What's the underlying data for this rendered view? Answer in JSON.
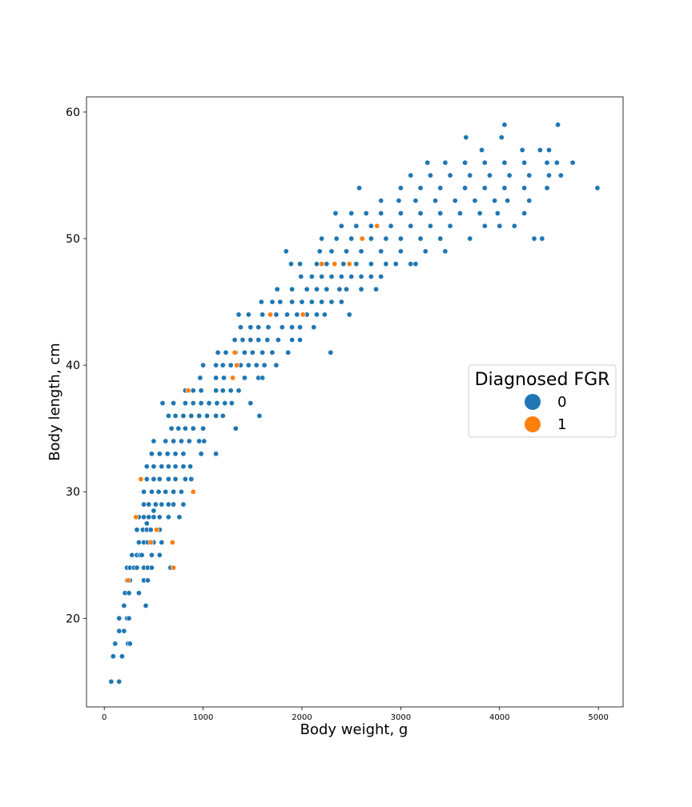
{
  "chart_data": {
    "type": "scatter",
    "xlabel": "Body weight, g",
    "ylabel": "Body length, cm",
    "xlim": [
      -180,
      5250
    ],
    "ylim": [
      13,
      61.2
    ],
    "xticks": [
      0,
      1000,
      2000,
      3000,
      4000,
      5000
    ],
    "yticks": [
      20,
      30,
      40,
      50,
      60
    ],
    "grid": false,
    "legend": {
      "title": "Diagnosed FGR",
      "placement": "right",
      "entries": [
        {
          "label": "0",
          "color": "#1f77b4"
        },
        {
          "label": "1",
          "color": "#ff7f0e"
        }
      ]
    },
    "series": [
      {
        "key": "0",
        "color": "#1f77b4",
        "points": [
          [
            70,
            15
          ],
          [
            150,
            15
          ],
          [
            90,
            17
          ],
          [
            180,
            17
          ],
          [
            110,
            18
          ],
          [
            240,
            18
          ],
          [
            260,
            18
          ],
          [
            150,
            19
          ],
          [
            200,
            19
          ],
          [
            150,
            20
          ],
          [
            230,
            20
          ],
          [
            250,
            20
          ],
          [
            200,
            21
          ],
          [
            420,
            21
          ],
          [
            210,
            22
          ],
          [
            250,
            22
          ],
          [
            350,
            22
          ],
          [
            230,
            23
          ],
          [
            260,
            23
          ],
          [
            400,
            23
          ],
          [
            440,
            23
          ],
          [
            230,
            24
          ],
          [
            260,
            24
          ],
          [
            300,
            24
          ],
          [
            330,
            24
          ],
          [
            400,
            24
          ],
          [
            440,
            24
          ],
          [
            480,
            24
          ],
          [
            670,
            24
          ],
          [
            280,
            25
          ],
          [
            330,
            25
          ],
          [
            360,
            25
          ],
          [
            380,
            25
          ],
          [
            480,
            25
          ],
          [
            560,
            25
          ],
          [
            350,
            26
          ],
          [
            400,
            26
          ],
          [
            440,
            26
          ],
          [
            500,
            26
          ],
          [
            580,
            26
          ],
          [
            330,
            27
          ],
          [
            390,
            27
          ],
          [
            430,
            27
          ],
          [
            470,
            27
          ],
          [
            560,
            27
          ],
          [
            430,
            27.5
          ],
          [
            350,
            28
          ],
          [
            400,
            28
          ],
          [
            450,
            28
          ],
          [
            500,
            28
          ],
          [
            560,
            28
          ],
          [
            650,
            28
          ],
          [
            760,
            28
          ],
          [
            500,
            28.5
          ],
          [
            400,
            29
          ],
          [
            450,
            29
          ],
          [
            520,
            29
          ],
          [
            580,
            29
          ],
          [
            650,
            29
          ],
          [
            700,
            29
          ],
          [
            800,
            29
          ],
          [
            400,
            30
          ],
          [
            480,
            30
          ],
          [
            550,
            30
          ],
          [
            620,
            30
          ],
          [
            700,
            30
          ],
          [
            780,
            30
          ],
          [
            430,
            31
          ],
          [
            500,
            31
          ],
          [
            560,
            31
          ],
          [
            650,
            31
          ],
          [
            720,
            31
          ],
          [
            820,
            31
          ],
          [
            880,
            31
          ],
          [
            430,
            32
          ],
          [
            500,
            32
          ],
          [
            580,
            32
          ],
          [
            650,
            32
          ],
          [
            720,
            32
          ],
          [
            800,
            32
          ],
          [
            870,
            32
          ],
          [
            480,
            33
          ],
          [
            560,
            33
          ],
          [
            640,
            33
          ],
          [
            720,
            33
          ],
          [
            800,
            33
          ],
          [
            980,
            33
          ],
          [
            1130,
            33
          ],
          [
            500,
            34
          ],
          [
            620,
            34
          ],
          [
            700,
            34
          ],
          [
            780,
            34
          ],
          [
            860,
            34
          ],
          [
            960,
            34
          ],
          [
            1010,
            34
          ],
          [
            680,
            35
          ],
          [
            750,
            35
          ],
          [
            820,
            35
          ],
          [
            900,
            35
          ],
          [
            1000,
            35
          ],
          [
            1330,
            35
          ],
          [
            650,
            36
          ],
          [
            720,
            36
          ],
          [
            800,
            36
          ],
          [
            880,
            36
          ],
          [
            960,
            36
          ],
          [
            1040,
            36
          ],
          [
            1130,
            36
          ],
          [
            1200,
            36
          ],
          [
            1570,
            36
          ],
          [
            590,
            37
          ],
          [
            700,
            37
          ],
          [
            820,
            37
          ],
          [
            900,
            37
          ],
          [
            980,
            37
          ],
          [
            1060,
            37
          ],
          [
            1140,
            37
          ],
          [
            1220,
            37
          ],
          [
            1290,
            37
          ],
          [
            1480,
            37
          ],
          [
            820,
            38
          ],
          [
            900,
            38
          ],
          [
            980,
            38
          ],
          [
            1130,
            38
          ],
          [
            1200,
            38
          ],
          [
            1280,
            38
          ],
          [
            1360,
            38
          ],
          [
            970,
            39
          ],
          [
            1130,
            39
          ],
          [
            1210,
            39
          ],
          [
            1300,
            39
          ],
          [
            1420,
            39
          ],
          [
            1560,
            39
          ],
          [
            1600,
            39
          ],
          [
            1000,
            40
          ],
          [
            1130,
            40
          ],
          [
            1200,
            40
          ],
          [
            1280,
            40
          ],
          [
            1380,
            40
          ],
          [
            1460,
            40
          ],
          [
            1540,
            40
          ],
          [
            1620,
            40
          ],
          [
            1740,
            40
          ],
          [
            1150,
            41
          ],
          [
            1230,
            41
          ],
          [
            1330,
            41
          ],
          [
            1420,
            41
          ],
          [
            1500,
            41
          ],
          [
            1600,
            41
          ],
          [
            1700,
            41
          ],
          [
            1860,
            41
          ],
          [
            2290,
            41
          ],
          [
            1320,
            42
          ],
          [
            1400,
            42
          ],
          [
            1480,
            42
          ],
          [
            1560,
            42
          ],
          [
            1650,
            42
          ],
          [
            1760,
            42
          ],
          [
            1900,
            42
          ],
          [
            1980,
            42
          ],
          [
            1380,
            43
          ],
          [
            1480,
            43
          ],
          [
            1560,
            43
          ],
          [
            1660,
            43
          ],
          [
            1800,
            43
          ],
          [
            1900,
            43
          ],
          [
            1980,
            43
          ],
          [
            2120,
            43
          ],
          [
            1360,
            44
          ],
          [
            1460,
            44
          ],
          [
            1600,
            44
          ],
          [
            1740,
            44
          ],
          [
            1850,
            44
          ],
          [
            1950,
            44
          ],
          [
            2050,
            44
          ],
          [
            2150,
            44
          ],
          [
            2230,
            44
          ],
          [
            2480,
            44
          ],
          [
            1590,
            45
          ],
          [
            1700,
            45
          ],
          [
            1780,
            45
          ],
          [
            1900,
            45
          ],
          [
            2000,
            45
          ],
          [
            2100,
            45
          ],
          [
            2200,
            45
          ],
          [
            2300,
            45
          ],
          [
            2400,
            45
          ],
          [
            1750,
            46
          ],
          [
            1900,
            46
          ],
          [
            2050,
            46
          ],
          [
            2150,
            46
          ],
          [
            2250,
            46
          ],
          [
            2380,
            46
          ],
          [
            2450,
            46
          ],
          [
            2600,
            46
          ],
          [
            2750,
            46
          ],
          [
            1990,
            47
          ],
          [
            2100,
            47
          ],
          [
            2200,
            47
          ],
          [
            2300,
            47
          ],
          [
            2400,
            47
          ],
          [
            2500,
            47
          ],
          [
            2600,
            47
          ],
          [
            2700,
            47
          ],
          [
            2800,
            47
          ],
          [
            1890,
            48
          ],
          [
            1980,
            48
          ],
          [
            2150,
            48
          ],
          [
            2250,
            48
          ],
          [
            2420,
            48
          ],
          [
            2550,
            48
          ],
          [
            2700,
            48
          ],
          [
            2850,
            48
          ],
          [
            2950,
            48
          ],
          [
            3100,
            48
          ],
          [
            3150,
            48
          ],
          [
            1840,
            49
          ],
          [
            2180,
            49
          ],
          [
            2300,
            49
          ],
          [
            2450,
            49
          ],
          [
            2600,
            49
          ],
          [
            2800,
            49
          ],
          [
            3000,
            49
          ],
          [
            3250,
            49
          ],
          [
            3450,
            49
          ],
          [
            2200,
            50
          ],
          [
            2350,
            50
          ],
          [
            2500,
            50
          ],
          [
            2700,
            50
          ],
          [
            2850,
            50
          ],
          [
            3000,
            50
          ],
          [
            3200,
            50
          ],
          [
            3400,
            50
          ],
          [
            3700,
            50
          ],
          [
            4350,
            50
          ],
          [
            4430,
            50
          ],
          [
            2400,
            51
          ],
          [
            2550,
            51
          ],
          [
            2700,
            51
          ],
          [
            2900,
            51
          ],
          [
            3100,
            51
          ],
          [
            3300,
            51
          ],
          [
            3500,
            51
          ],
          [
            3850,
            51
          ],
          [
            4000,
            51
          ],
          [
            4150,
            51
          ],
          [
            2340,
            52
          ],
          [
            2500,
            52
          ],
          [
            2650,
            52
          ],
          [
            2800,
            52
          ],
          [
            3000,
            52
          ],
          [
            3200,
            52
          ],
          [
            3400,
            52
          ],
          [
            3600,
            52
          ],
          [
            3800,
            52
          ],
          [
            3980,
            52
          ],
          [
            4250,
            52
          ],
          [
            2800,
            53
          ],
          [
            2980,
            53
          ],
          [
            3150,
            53
          ],
          [
            3350,
            53
          ],
          [
            3550,
            53
          ],
          [
            3750,
            53
          ],
          [
            3950,
            53
          ],
          [
            4080,
            53
          ],
          [
            4300,
            53
          ],
          [
            2580,
            54
          ],
          [
            3000,
            54
          ],
          [
            3200,
            54
          ],
          [
            3400,
            54
          ],
          [
            3650,
            54
          ],
          [
            3850,
            54
          ],
          [
            4050,
            54
          ],
          [
            4250,
            54
          ],
          [
            4480,
            54
          ],
          [
            4990,
            54
          ],
          [
            3100,
            55
          ],
          [
            3300,
            55
          ],
          [
            3500,
            55
          ],
          [
            3700,
            55
          ],
          [
            3900,
            55
          ],
          [
            4100,
            55
          ],
          [
            4300,
            55
          ],
          [
            4500,
            55
          ],
          [
            4620,
            55
          ],
          [
            3270,
            56
          ],
          [
            3450,
            56
          ],
          [
            3650,
            56
          ],
          [
            3850,
            56
          ],
          [
            4050,
            56
          ],
          [
            4250,
            56
          ],
          [
            4480,
            56
          ],
          [
            4580,
            56
          ],
          [
            4740,
            56
          ],
          [
            3820,
            57
          ],
          [
            4230,
            57
          ],
          [
            4410,
            57
          ],
          [
            4500,
            57
          ],
          [
            3660,
            58
          ],
          [
            4020,
            58
          ],
          [
            4050,
            59
          ],
          [
            4590,
            59
          ]
        ]
      },
      {
        "key": "1",
        "color": "#ff7f0e",
        "points": [
          [
            240,
            23
          ],
          [
            700,
            24
          ],
          [
            470,
            26
          ],
          [
            690,
            26
          ],
          [
            530,
            27
          ],
          [
            320,
            28
          ],
          [
            900,
            30
          ],
          [
            370,
            31
          ],
          [
            1300,
            39
          ],
          [
            1320,
            41
          ],
          [
            1340,
            40
          ],
          [
            1680,
            44
          ],
          [
            2010,
            44
          ],
          [
            850,
            38
          ],
          [
            2200,
            48
          ],
          [
            2480,
            48
          ],
          [
            2330,
            48
          ],
          [
            2610,
            50
          ],
          [
            2760,
            51
          ]
        ]
      }
    ]
  }
}
